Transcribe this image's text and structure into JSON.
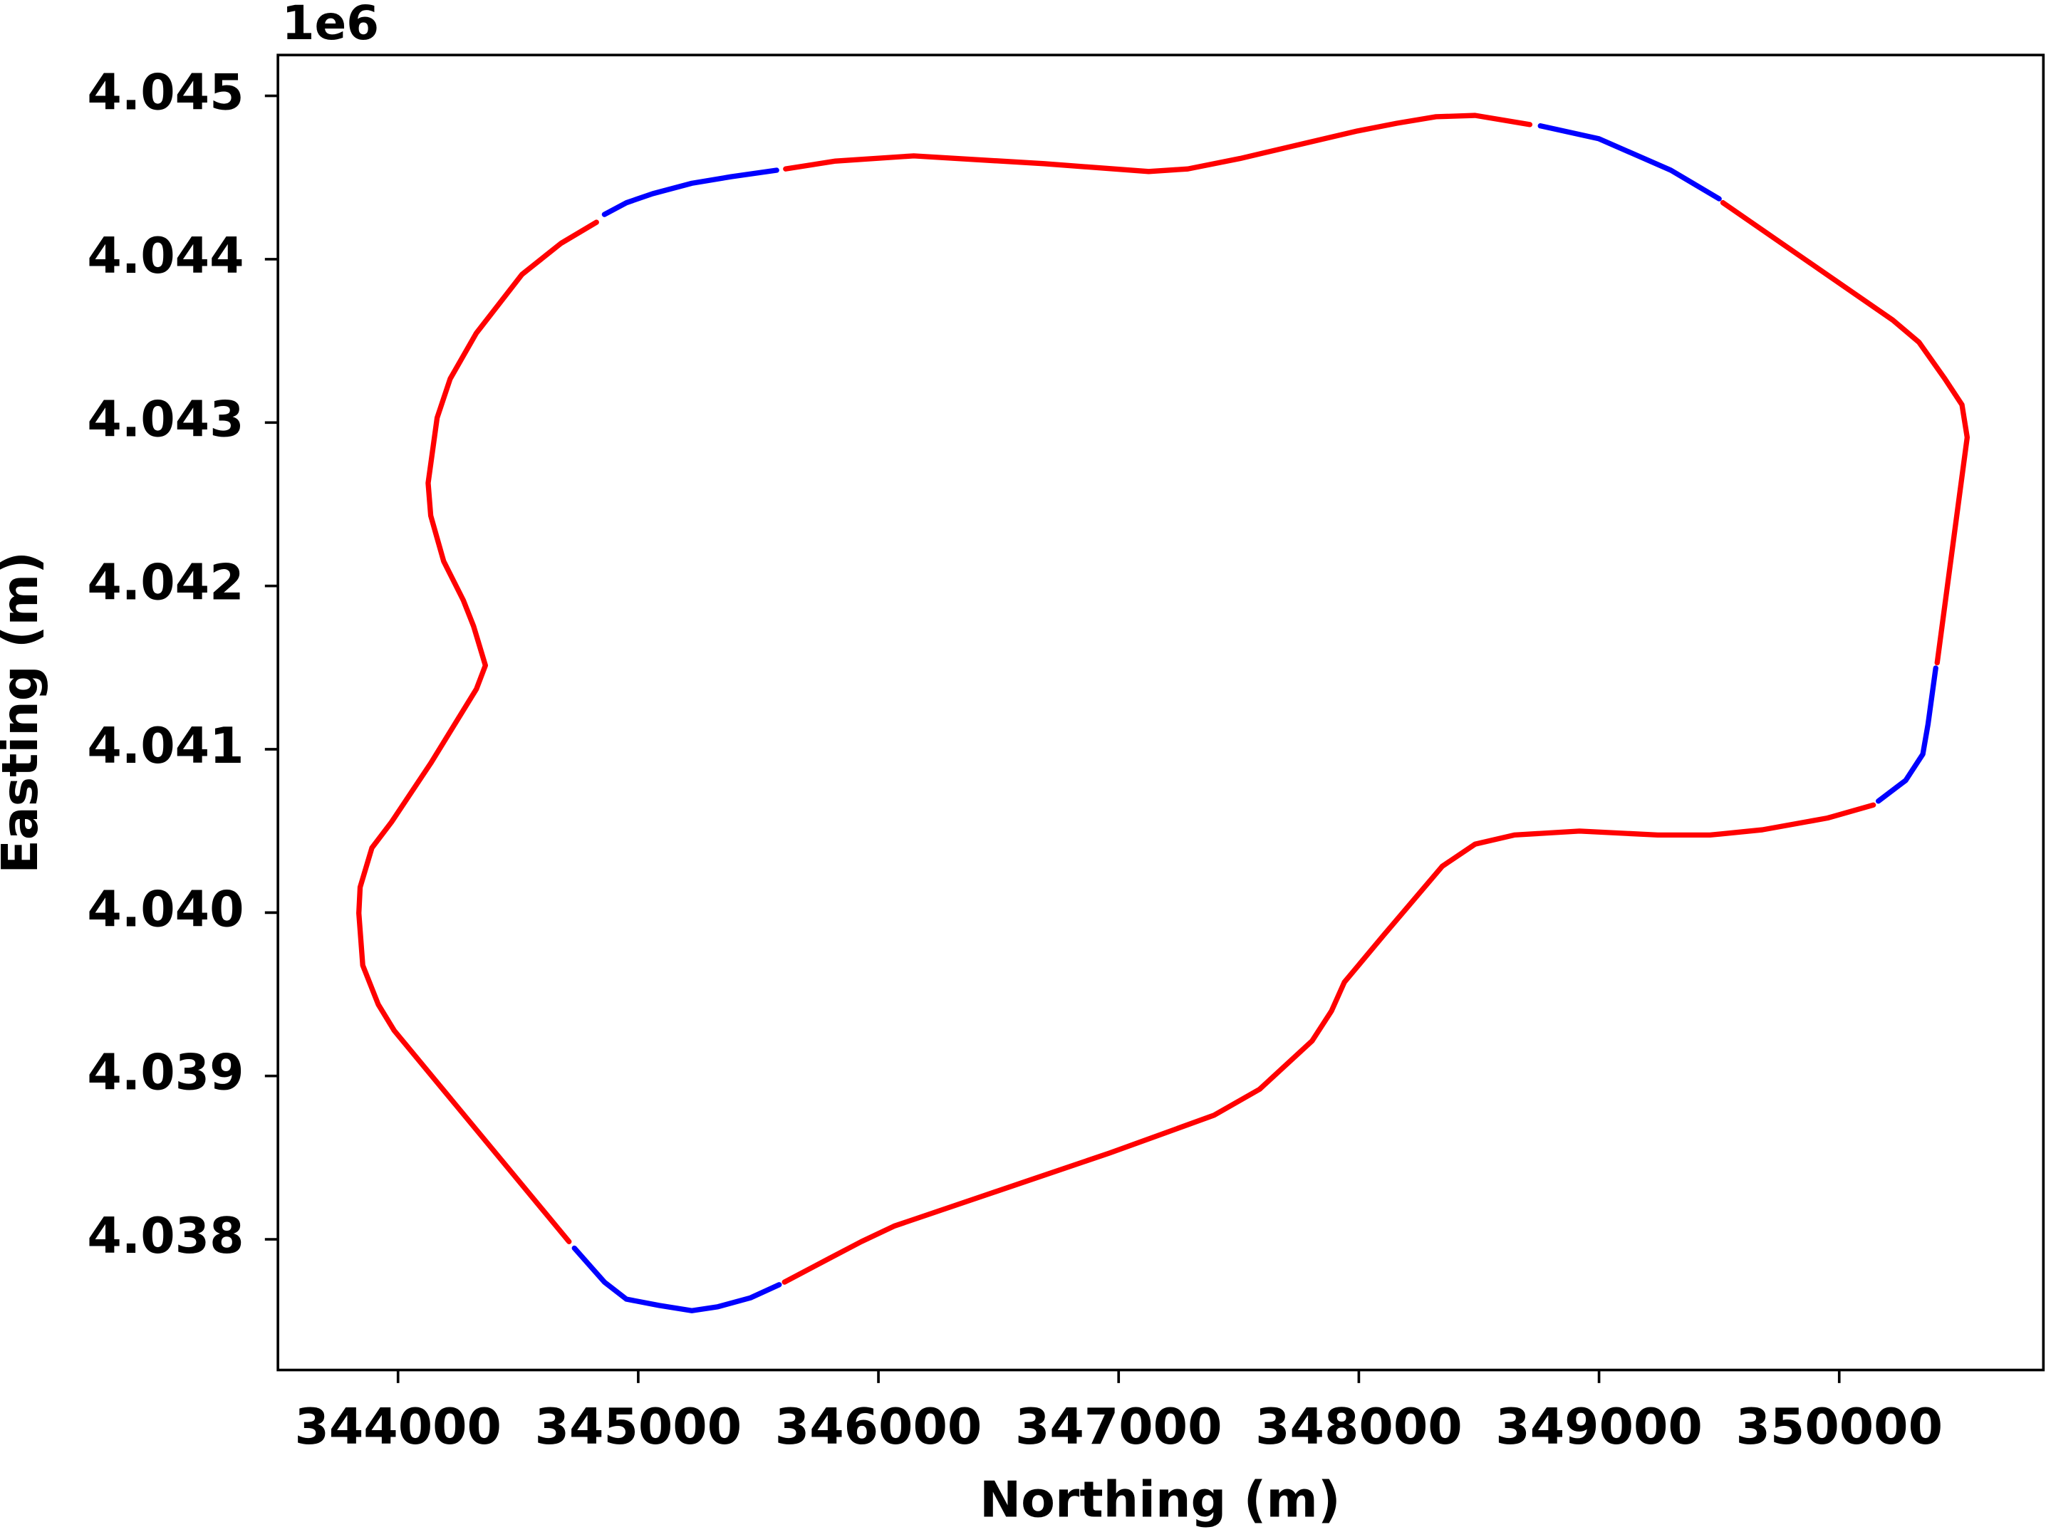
{
  "chart_data": {
    "type": "line",
    "xlabel": "Northing (m)",
    "ylabel": "Easting (m)",
    "y_offset_text": "1e6",
    "xlim": [
      343500,
      350850
    ],
    "ylim": [
      4037200,
      4045250
    ],
    "xticks": [
      344000,
      345000,
      346000,
      347000,
      348000,
      349000,
      350000
    ],
    "yticks": [
      {
        "value": 4038000,
        "label": "4.038"
      },
      {
        "value": 4039000,
        "label": "4.039"
      },
      {
        "value": 4040000,
        "label": "4.040"
      },
      {
        "value": 4041000,
        "label": "4.041"
      },
      {
        "value": 4042000,
        "label": "4.042"
      },
      {
        "value": 4043000,
        "label": "4.043"
      },
      {
        "value": 4044000,
        "label": "4.044"
      },
      {
        "value": 4045000,
        "label": "4.045"
      }
    ],
    "series": [
      {
        "color": "#0000ff",
        "x": [
          344734,
          344859,
          344951,
          345087,
          345223,
          345332,
          345467,
          345587
        ],
        "y": [
          4037946,
          4037738,
          4037634,
          4037595,
          4037563,
          4037587,
          4037642,
          4037722
        ]
      },
      {
        "color": "#ff0000",
        "x": [
          345609,
          345794,
          345929,
          346065,
          346419,
          346962,
          347397,
          347587,
          347805,
          347886,
          347940,
          348103,
          348348,
          348484,
          348647,
          348919,
          349245,
          349462,
          349680,
          349951,
          350142
        ],
        "y": [
          4037738,
          4037882,
          4037986,
          4038081,
          4038257,
          4038528,
          4038760,
          4038919,
          4039214,
          4039398,
          4039574,
          4039861,
          4040284,
          4040419,
          4040475,
          4040499,
          4040475,
          4040475,
          4040507,
          4040579,
          4040659
        ]
      },
      {
        "color": "#0000ff",
        "x": [
          350163,
          350277,
          350348,
          350370,
          350402
        ],
        "y": [
          4040683,
          4040810,
          4040970,
          4041154,
          4041497
        ]
      },
      {
        "color": "#ff0000",
        "x": [
          350408,
          350533,
          350511,
          350440,
          350332,
          350223,
          349516
        ],
        "y": [
          4041529,
          4042909,
          4043109,
          4043268,
          4043492,
          4043627,
          4044346
        ]
      },
      {
        "color": "#0000ff",
        "x": [
          349500,
          349299,
          349000,
          348756
        ],
        "y": [
          4044370,
          4044545,
          4044737,
          4044816
        ]
      },
      {
        "color": "#ff0000",
        "x": [
          348712,
          348484,
          348321,
          348158,
          347995,
          347506,
          347288,
          347125,
          346690,
          346147,
          345821,
          345614
        ],
        "y": [
          4044824,
          4044880,
          4044872,
          4044832,
          4044785,
          4044617,
          4044553,
          4044537,
          4044585,
          4044633,
          4044601,
          4044553
        ]
      },
      {
        "color": "#0000ff",
        "x": [
          345576,
          345386,
          345223,
          345060,
          344951,
          344859
        ],
        "y": [
          4044545,
          4044505,
          4044465,
          4044401,
          4044346,
          4044274
        ]
      },
      {
        "color": "#ff0000",
        "x": [
          344826,
          344679,
          344516,
          344326,
          344217,
          344163,
          344125,
          344136,
          344190,
          344272,
          344315,
          344364,
          344326,
          344136,
          343973,
          343891,
          343842,
          343837,
          343853,
          343918,
          343984,
          344712
        ],
        "y": [
          4044226,
          4044098,
          4043907,
          4043548,
          4043268,
          4043029,
          4042630,
          4042430,
          4042151,
          4041912,
          4041752,
          4041513,
          4041369,
          4040914,
          4040555,
          4040396,
          4040156,
          4039997,
          4039677,
          4039438,
          4039278,
          4037986
        ]
      }
    ]
  }
}
